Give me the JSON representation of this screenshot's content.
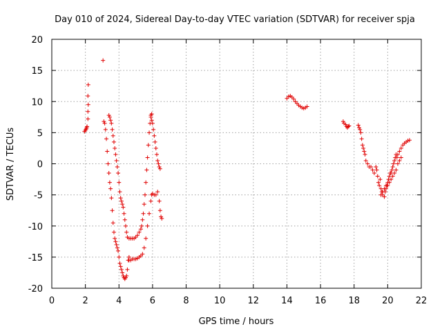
{
  "chart_data": {
    "type": "scatter",
    "title": "Day 010 of 2024, Sidereal Day-to-day VTEC variation (SDTVAR) for receiver spja",
    "xlabel": "GPS time / hours",
    "ylabel": "SDTVAR / TECUs",
    "xlim": [
      0,
      22
    ],
    "ylim": [
      -20,
      20
    ],
    "xticks": [
      0,
      2,
      4,
      6,
      8,
      10,
      12,
      14,
      16,
      18,
      20,
      22
    ],
    "yticks": [
      -20,
      -15,
      -10,
      -5,
      0,
      5,
      10,
      15,
      20
    ],
    "grid": true,
    "marker": "+",
    "color": "#e00000",
    "series": [
      {
        "name": "seg1",
        "points": [
          [
            1.95,
            5.2
          ],
          [
            2.0,
            5.4
          ],
          [
            2.05,
            5.6
          ],
          [
            2.08,
            5.8
          ],
          [
            2.1,
            6.0
          ],
          [
            2.15,
            7.2
          ],
          [
            2.15,
            8.4
          ],
          [
            2.17,
            9.5
          ],
          [
            2.15,
            10.9
          ],
          [
            2.17,
            12.7
          ],
          [
            3.05,
            16.6
          ]
        ]
      },
      {
        "name": "seg2",
        "points": [
          [
            3.1,
            6.8
          ],
          [
            3.15,
            6.5
          ],
          [
            3.2,
            5.5
          ],
          [
            3.25,
            4.0
          ],
          [
            3.3,
            2.0
          ],
          [
            3.35,
            0.0
          ],
          [
            3.4,
            -1.5
          ],
          [
            3.45,
            -3.0
          ],
          [
            3.5,
            -4.0
          ],
          [
            3.55,
            -5.5
          ],
          [
            3.6,
            -7.5
          ],
          [
            3.65,
            -9.5
          ],
          [
            3.7,
            -11.0
          ],
          [
            3.75,
            -12.0
          ],
          [
            3.8,
            -12.5
          ],
          [
            3.85,
            -13.0
          ],
          [
            3.9,
            -13.5
          ],
          [
            3.95,
            -14.0
          ],
          [
            4.0,
            -15.0
          ],
          [
            4.05,
            -16.0
          ],
          [
            4.1,
            -16.5
          ],
          [
            4.15,
            -17.0
          ],
          [
            4.2,
            -17.5
          ],
          [
            4.25,
            -18.0
          ],
          [
            4.3,
            -18.3
          ],
          [
            4.35,
            -18.5
          ],
          [
            4.4,
            -18.3
          ],
          [
            4.45,
            -18.0
          ],
          [
            4.5,
            -17.0
          ],
          [
            4.55,
            -15.5
          ],
          [
            4.6,
            -15.0
          ]
        ]
      },
      {
        "name": "seg3",
        "points": [
          [
            3.4,
            7.8
          ],
          [
            3.45,
            7.5
          ],
          [
            3.5,
            7.0
          ],
          [
            3.55,
            6.5
          ],
          [
            3.6,
            5.5
          ],
          [
            3.65,
            4.5
          ],
          [
            3.7,
            3.5
          ],
          [
            3.75,
            2.5
          ],
          [
            3.8,
            1.5
          ],
          [
            3.85,
            0.5
          ],
          [
            3.9,
            -0.5
          ],
          [
            3.95,
            -1.5
          ],
          [
            4.0,
            -3.0
          ],
          [
            4.05,
            -4.5
          ],
          [
            4.1,
            -5.5
          ],
          [
            4.15,
            -6.0
          ],
          [
            4.2,
            -6.5
          ],
          [
            4.25,
            -7.0
          ],
          [
            4.3,
            -8.0
          ],
          [
            4.35,
            -9.0
          ],
          [
            4.4,
            -10.0
          ],
          [
            4.45,
            -11.0
          ],
          [
            4.5,
            -11.8
          ],
          [
            4.6,
            -12.0
          ],
          [
            4.7,
            -12.0
          ],
          [
            4.8,
            -12.0
          ],
          [
            4.9,
            -12.0
          ],
          [
            5.0,
            -11.8
          ],
          [
            5.1,
            -11.5
          ],
          [
            5.2,
            -11.0
          ],
          [
            5.3,
            -10.5
          ],
          [
            5.35,
            -10.0
          ],
          [
            5.4,
            -9.0
          ],
          [
            5.45,
            -8.0
          ],
          [
            5.5,
            -6.5
          ],
          [
            5.55,
            -5.0
          ],
          [
            5.6,
            -3.0
          ],
          [
            5.65,
            -1.0
          ],
          [
            5.7,
            1.0
          ],
          [
            5.75,
            3.0
          ],
          [
            5.8,
            5.0
          ],
          [
            5.85,
            6.5
          ],
          [
            5.9,
            7.5
          ],
          [
            5.95,
            8.0
          ]
        ]
      },
      {
        "name": "seg4",
        "points": [
          [
            4.6,
            -15.5
          ],
          [
            4.7,
            -15.5
          ],
          [
            4.8,
            -15.3
          ],
          [
            4.9,
            -15.3
          ],
          [
            5.0,
            -15.3
          ],
          [
            5.1,
            -15.2
          ],
          [
            5.2,
            -15.0
          ],
          [
            5.3,
            -14.8
          ],
          [
            5.4,
            -14.5
          ],
          [
            5.5,
            -13.5
          ],
          [
            5.6,
            -12.0
          ],
          [
            5.7,
            -10.0
          ],
          [
            5.8,
            -8.0
          ],
          [
            5.9,
            -6.0
          ],
          [
            5.95,
            -5.0
          ],
          [
            6.0,
            -4.8
          ],
          [
            6.1,
            -5.0
          ],
          [
            6.2,
            -5.0
          ],
          [
            6.3,
            -4.5
          ],
          [
            6.4,
            -6.0
          ],
          [
            6.45,
            -7.5
          ],
          [
            6.5,
            -8.5
          ],
          [
            6.55,
            -8.8
          ]
        ]
      },
      {
        "name": "seg5",
        "points": [
          [
            5.9,
            7.8
          ],
          [
            5.95,
            7.0
          ],
          [
            6.0,
            6.5
          ],
          [
            6.05,
            5.5
          ],
          [
            6.1,
            4.5
          ],
          [
            6.15,
            3.5
          ],
          [
            6.2,
            2.5
          ],
          [
            6.25,
            1.5
          ],
          [
            6.3,
            0.5
          ],
          [
            6.35,
            0.0
          ],
          [
            6.4,
            -0.5
          ],
          [
            6.45,
            -0.8
          ]
        ]
      },
      {
        "name": "seg6",
        "points": [
          [
            14.0,
            10.5
          ],
          [
            14.1,
            10.8
          ],
          [
            14.2,
            10.9
          ],
          [
            14.3,
            10.7
          ],
          [
            14.4,
            10.4
          ],
          [
            14.5,
            10.0
          ],
          [
            14.6,
            9.7
          ],
          [
            14.7,
            9.4
          ],
          [
            14.8,
            9.2
          ],
          [
            14.9,
            9.0
          ],
          [
            15.0,
            8.9
          ],
          [
            15.1,
            9.0
          ],
          [
            15.2,
            9.2
          ]
        ]
      },
      {
        "name": "seg7",
        "points": [
          [
            17.35,
            6.8
          ],
          [
            17.4,
            6.5
          ],
          [
            17.5,
            6.3
          ],
          [
            17.55,
            6.0
          ],
          [
            17.6,
            5.8
          ],
          [
            17.65,
            6.0
          ],
          [
            17.7,
            6.1
          ],
          [
            18.25,
            6.2
          ],
          [
            18.3,
            5.8
          ],
          [
            18.35,
            5.5
          ],
          [
            18.4,
            5.0
          ],
          [
            18.45,
            4.0
          ],
          [
            18.5,
            3.0
          ],
          [
            18.55,
            2.5
          ],
          [
            18.6,
            2.0
          ],
          [
            18.65,
            1.5
          ],
          [
            18.7,
            0.5
          ],
          [
            18.8,
            0.0
          ],
          [
            18.9,
            -0.5
          ],
          [
            19.0,
            -0.5
          ],
          [
            19.1,
            -1.0
          ],
          [
            19.2,
            -1.5
          ],
          [
            19.3,
            -0.5
          ],
          [
            19.35,
            -1.0
          ],
          [
            19.4,
            -2.0
          ],
          [
            19.45,
            -3.0
          ],
          [
            19.5,
            -3.5
          ],
          [
            19.55,
            -2.5
          ],
          [
            19.6,
            -4.0
          ],
          [
            19.65,
            -4.5
          ],
          [
            19.7,
            -5.0
          ],
          [
            19.8,
            -5.3
          ],
          [
            19.85,
            -4.5
          ],
          [
            19.9,
            -4.0
          ],
          [
            19.95,
            -3.5
          ],
          [
            20.0,
            -3.0
          ],
          [
            20.05,
            -2.5
          ],
          [
            20.1,
            -2.0
          ],
          [
            20.15,
            -1.5
          ],
          [
            20.2,
            -1.5
          ],
          [
            20.25,
            -1.0
          ],
          [
            20.3,
            -0.5
          ],
          [
            20.35,
            0.0
          ],
          [
            20.4,
            0.5
          ],
          [
            20.45,
            1.0
          ],
          [
            20.5,
            1.5
          ],
          [
            20.55,
            1.0
          ],
          [
            20.6,
            1.5
          ],
          [
            20.7,
            2.0
          ],
          [
            20.8,
            2.5
          ],
          [
            20.9,
            3.0
          ],
          [
            21.0,
            3.3
          ],
          [
            21.1,
            3.5
          ],
          [
            21.2,
            3.7
          ],
          [
            21.3,
            3.8
          ]
        ]
      },
      {
        "name": "seg8",
        "points": [
          [
            19.6,
            -5.0
          ],
          [
            19.7,
            -4.5
          ],
          [
            19.8,
            -4.0
          ],
          [
            19.9,
            -3.5
          ],
          [
            20.0,
            -3.5
          ],
          [
            20.1,
            -3.0
          ],
          [
            20.2,
            -2.5
          ],
          [
            20.3,
            -2.0
          ],
          [
            20.4,
            -1.5
          ],
          [
            20.5,
            -1.0
          ],
          [
            20.6,
            0.0
          ],
          [
            20.7,
            0.5
          ],
          [
            20.8,
            1.0
          ]
        ]
      }
    ]
  }
}
